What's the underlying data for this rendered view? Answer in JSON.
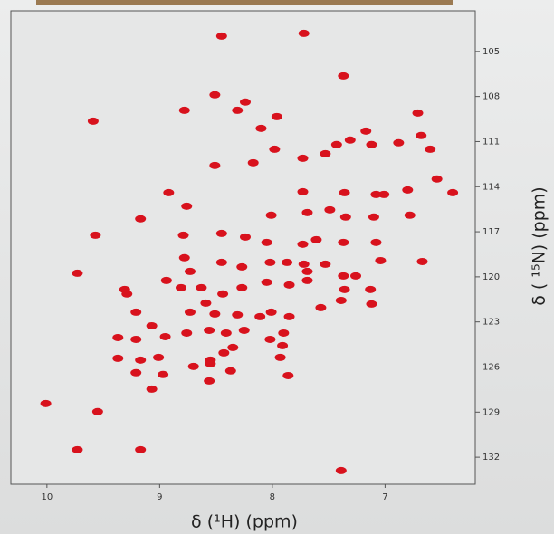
{
  "chart_data": {
    "type": "scatter",
    "x_label": "δ (¹H)  (ppm)",
    "y_label": "δ ( ¹⁵N) (ppm)",
    "color": "#d8121d",
    "xlim": [
      10.32,
      6.2
    ],
    "ylim": [
      133.8,
      102.3
    ],
    "xticks": [
      10,
      9,
      8,
      7
    ],
    "yticks": [
      105,
      108,
      111,
      114,
      117,
      120,
      123,
      126,
      129,
      132
    ],
    "x": [
      8.45,
      7.72,
      7.37,
      8.51,
      8.24,
      9.59,
      8.78,
      8.31,
      7.96,
      8.1,
      7.17,
      6.71,
      8.51,
      8.17,
      7.98,
      7.73,
      7.53,
      7.43,
      7.31,
      7.12,
      6.88,
      6.68,
      6.6,
      6.54,
      6.4,
      7.73,
      7.36,
      7.08,
      7.01,
      6.8,
      8.92,
      8.76,
      9.17,
      8.01,
      7.69,
      7.49,
      7.35,
      7.1,
      6.78,
      8.79,
      8.45,
      8.24,
      8.05,
      7.73,
      7.61,
      7.37,
      7.08,
      9.57,
      9.73,
      9.31,
      8.78,
      8.73,
      8.45,
      8.27,
      8.02,
      7.87,
      7.69,
      7.53,
      7.37,
      7.26,
      7.04,
      6.67,
      8.94,
      8.81,
      8.63,
      8.44,
      8.27,
      8.05,
      7.85,
      7.69,
      7.36,
      7.13,
      7.12,
      9.29,
      9.21,
      8.73,
      8.51,
      8.31,
      8.01,
      7.85,
      7.57,
      7.39,
      9.37,
      9.21,
      8.95,
      9.07,
      8.76,
      8.56,
      8.41,
      8.25,
      8.02,
      7.9,
      9.37,
      9.17,
      9.01,
      8.55,
      8.43,
      8.35,
      7.93,
      7.91,
      9.21,
      8.97,
      8.55,
      8.37,
      8.56,
      7.86,
      9.07,
      10.01,
      9.55,
      9.73,
      9.17,
      7.39,
      8.7,
      7.72,
      8.59,
      8.11
    ],
    "y": [
      103.98,
      103.8,
      106.63,
      107.89,
      108.37,
      109.64,
      108.92,
      108.92,
      109.34,
      110.12,
      110.3,
      109.1,
      112.59,
      112.41,
      111.51,
      112.11,
      111.81,
      111.2,
      110.9,
      111.2,
      111.08,
      110.6,
      111.51,
      113.49,
      114.4,
      114.34,
      114.4,
      114.52,
      114.52,
      114.22,
      114.4,
      115.3,
      116.14,
      115.9,
      115.72,
      115.54,
      116.02,
      116.02,
      115.9,
      117.23,
      117.11,
      117.35,
      117.71,
      117.83,
      117.53,
      117.71,
      117.71,
      117.23,
      119.76,
      120.84,
      118.73,
      119.64,
      119.04,
      119.34,
      119.04,
      119.04,
      119.64,
      119.16,
      119.94,
      119.94,
      118.92,
      118.98,
      120.24,
      120.72,
      120.72,
      121.14,
      120.72,
      120.36,
      120.54,
      120.24,
      120.84,
      120.84,
      121.81,
      121.14,
      122.35,
      122.35,
      122.47,
      122.53,
      122.35,
      122.65,
      122.05,
      121.57,
      124.04,
      124.16,
      123.98,
      123.26,
      123.74,
      123.56,
      123.74,
      123.56,
      124.16,
      123.74,
      125.42,
      125.54,
      125.36,
      125.54,
      125.06,
      124.7,
      125.36,
      124.58,
      126.38,
      126.5,
      125.78,
      126.26,
      126.93,
      126.57,
      127.47,
      128.43,
      128.97,
      131.5,
      131.5,
      132.89,
      125.96,
      119.16,
      121.75,
      122.65
    ]
  }
}
